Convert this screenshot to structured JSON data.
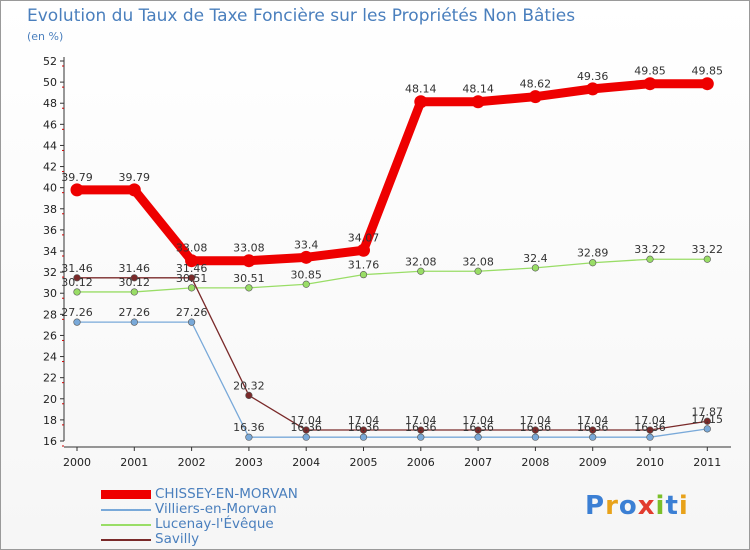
{
  "title": "Evolution du Taux de Taxe Foncière sur les Propriétés Non Bâties",
  "unit_label": "(en %)",
  "logo": "Proxiti",
  "colors": {
    "title": "#4a7fbd",
    "chissey": "#ee0000",
    "villiers": "#79a9d9",
    "lucenay": "#99dd66",
    "savilly": "#7a2a2a"
  },
  "chart_data": {
    "type": "line",
    "title": "Evolution du Taux de Taxe Foncière sur les Propriétés Non Bâties",
    "ylabel": "(en %)",
    "xlabel": "",
    "ylim": [
      16,
      52
    ],
    "yticks": [
      16,
      18,
      20,
      22,
      24,
      26,
      28,
      30,
      32,
      34,
      36,
      38,
      40,
      42,
      44,
      46,
      48,
      50,
      52
    ],
    "grid": false,
    "legend_position": "bottom-left",
    "categories": [
      "2000",
      "2001",
      "2002",
      "2003",
      "2004",
      "2005",
      "2006",
      "2007",
      "2008",
      "2009",
      "2010",
      "2011"
    ],
    "series": [
      {
        "name": "CHISSEY-EN-MORVAN",
        "color": "#ee0000",
        "values": [
          39.79,
          39.79,
          33.08,
          33.08,
          33.4,
          34.07,
          48.14,
          48.14,
          48.62,
          49.36,
          49.85,
          49.85
        ],
        "labels": [
          "39.79",
          "39.79",
          "33.08",
          "33.08",
          "33.4",
          "34.07",
          "48.14",
          "48.14",
          "48.62",
          "49.36",
          "49.85",
          "49.85"
        ]
      },
      {
        "name": "Villiers-en-Morvan",
        "color": "#79a9d9",
        "values": [
          27.26,
          27.26,
          27.26,
          16.36,
          16.36,
          16.36,
          16.36,
          16.36,
          16.36,
          16.36,
          16.36,
          17.15
        ],
        "labels": [
          "27.26",
          "27.26",
          "27.26",
          "16.36",
          "16.36",
          "16.36",
          "16.36",
          "16.36",
          "16.36",
          "16.36",
          "16.36",
          "17.15"
        ]
      },
      {
        "name": "Lucenay-l'Évêque",
        "color": "#99dd66",
        "values": [
          30.12,
          30.12,
          30.51,
          30.51,
          30.85,
          31.76,
          32.08,
          32.08,
          32.4,
          32.89,
          33.22,
          33.22
        ],
        "labels": [
          "30.12",
          "30.12",
          "30.51",
          "30.51",
          "30.85",
          "31.76",
          "32.08",
          "32.08",
          "32.4",
          "32.89",
          "33.22",
          "33.22"
        ]
      },
      {
        "name": "Savilly",
        "color": "#7a2a2a",
        "values": [
          31.46,
          31.46,
          31.46,
          20.32,
          17.04,
          17.04,
          17.04,
          17.04,
          17.04,
          17.04,
          17.04,
          17.87
        ],
        "labels": [
          "31.46",
          "31.46",
          "31.46",
          "20.32",
          "17.04",
          "17.04",
          "17.04",
          "17.04",
          "17.04",
          "17.04",
          "17.04",
          "17.87"
        ]
      }
    ]
  }
}
